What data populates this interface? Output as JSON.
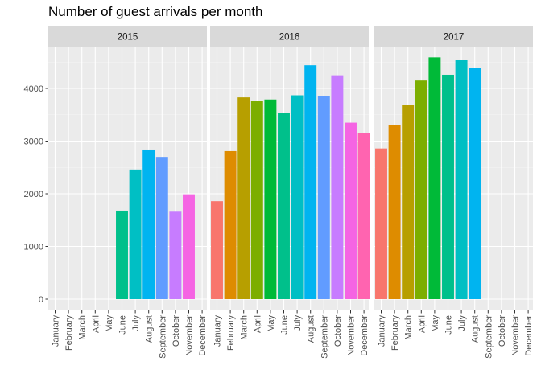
{
  "chart_data": {
    "type": "bar",
    "title": "Number of guest arrivals per month",
    "xlabel": "",
    "ylabel": "",
    "ylim": [
      0,
      4800
    ],
    "yticks": [
      0,
      1000,
      2000,
      3000,
      4000
    ],
    "grid": true,
    "legend": "none",
    "months": [
      "January",
      "February",
      "March",
      "April",
      "May",
      "June",
      "July",
      "August",
      "September",
      "October",
      "November",
      "December"
    ],
    "month_colors": [
      "#F8766D",
      "#DE8C00",
      "#B79F00",
      "#7CAE00",
      "#00BA38",
      "#00C08B",
      "#00BFC4",
      "#00B4F0",
      "#619CFF",
      "#C77CFF",
      "#F564E3",
      "#FF64B0"
    ],
    "panels": [
      {
        "name": "2015",
        "values": [
          null,
          null,
          null,
          null,
          null,
          1680,
          2460,
          2840,
          2700,
          1660,
          1990,
          null
        ]
      },
      {
        "name": "2016",
        "values": [
          1860,
          2810,
          3830,
          3770,
          3790,
          3530,
          3870,
          4440,
          3860,
          4250,
          3350,
          3160
        ]
      },
      {
        "name": "2017",
        "values": [
          2860,
          3300,
          3690,
          4150,
          4590,
          4260,
          4540,
          4390,
          null,
          null,
          null,
          null
        ]
      }
    ]
  }
}
